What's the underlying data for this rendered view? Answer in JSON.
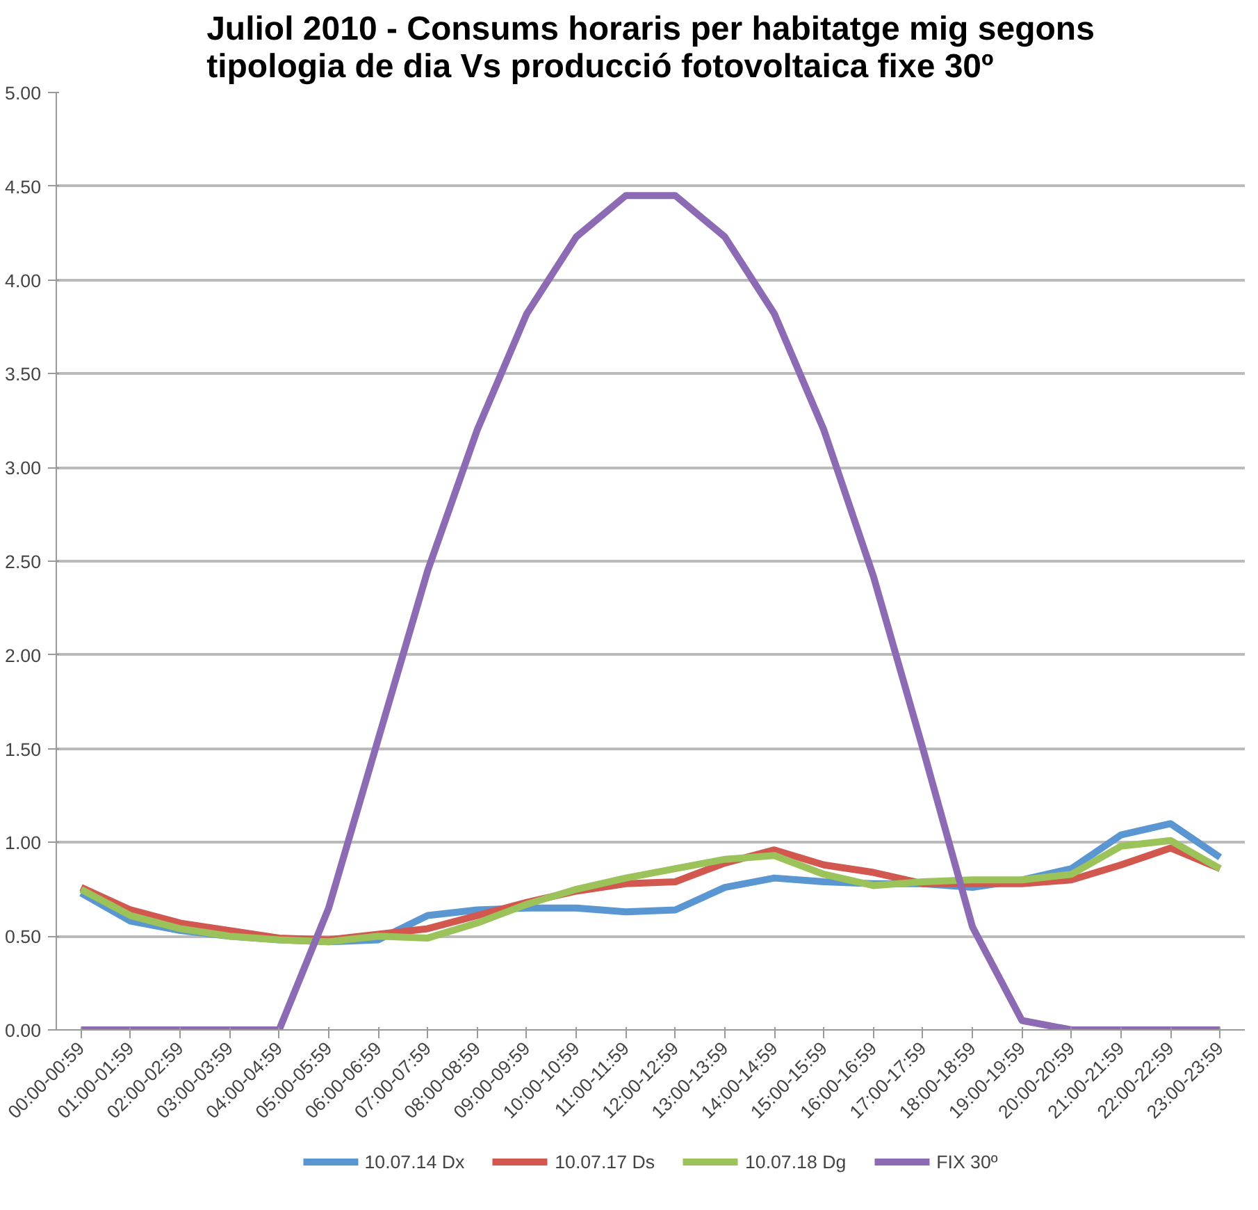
{
  "chart_data": {
    "type": "line",
    "title": "Juliol 2010 - Consums horaris per habitatge mig segons\ntipologia de dia Vs producció fotovoltaica fixe 30º",
    "categories": [
      "00:00-00:59",
      "01:00-01:59",
      "02:00-02:59",
      "03:00-03:59",
      "04:00-04:59",
      "05:00-05:59",
      "06:00-06:59",
      "07:00-07:59",
      "08:00-08:59",
      "09:00-09:59",
      "10:00-10:59",
      "11:00-11:59",
      "12:00-12:59",
      "13:00-13:59",
      "14:00-14:59",
      "15:00-15:59",
      "16:00-16:59",
      "17:00-17:59",
      "18:00-18:59",
      "19:00-19:59",
      "20:00-20:59",
      "21:00-21:59",
      "22:00-22:59",
      "23:00-23:59"
    ],
    "series": [
      {
        "name": "10.07.14 Dx",
        "color": "#5a96d2",
        "values": [
          0.73,
          0.58,
          0.53,
          0.5,
          0.48,
          0.47,
          0.48,
          0.61,
          0.64,
          0.65,
          0.65,
          0.63,
          0.64,
          0.76,
          0.81,
          0.79,
          0.78,
          0.78,
          0.76,
          0.8,
          0.86,
          1.04,
          1.1,
          0.92
        ]
      },
      {
        "name": "10.07.17 Ds",
        "color": "#d2574f",
        "values": [
          0.76,
          0.64,
          0.57,
          0.53,
          0.49,
          0.48,
          0.51,
          0.54,
          0.61,
          0.68,
          0.74,
          0.78,
          0.79,
          0.89,
          0.96,
          0.88,
          0.84,
          0.78,
          0.78,
          0.78,
          0.8,
          0.88,
          0.97,
          0.86
        ]
      },
      {
        "name": "10.07.18 Dg",
        "color": "#9cc35a",
        "values": [
          0.75,
          0.61,
          0.54,
          0.5,
          0.48,
          0.47,
          0.5,
          0.49,
          0.57,
          0.67,
          0.75,
          0.81,
          0.86,
          0.91,
          0.93,
          0.83,
          0.77,
          0.79,
          0.8,
          0.8,
          0.83,
          0.98,
          1.01,
          0.86
        ]
      },
      {
        "name": "FIX 30º",
        "color": "#8c6bb4",
        "values": [
          0,
          0,
          0,
          0,
          0,
          0.65,
          1.55,
          2.45,
          3.2,
          3.82,
          4.23,
          4.45,
          4.45,
          4.23,
          3.82,
          3.2,
          2.42,
          1.5,
          0.55,
          0.05,
          0,
          0,
          0,
          0
        ]
      }
    ],
    "ylim": [
      0,
      5
    ],
    "yticks": [
      {
        "value": 0,
        "label": "0.00"
      },
      {
        "value": 0.5,
        "label": "0.50"
      },
      {
        "value": 1,
        "label": "1.00"
      },
      {
        "value": 1.5,
        "label": "1.50"
      },
      {
        "value": 2,
        "label": "2.00"
      },
      {
        "value": 2.5,
        "label": "2.50"
      },
      {
        "value": 3,
        "label": "3.00"
      },
      {
        "value": 3.5,
        "label": "3.50"
      },
      {
        "value": 4,
        "label": "4.00"
      },
      {
        "value": 4.5,
        "label": "4.50"
      },
      {
        "value": 5,
        "label": "5.00"
      }
    ],
    "grid": "y",
    "legend": "bottom",
    "marker": "none",
    "line_style": "solid"
  }
}
